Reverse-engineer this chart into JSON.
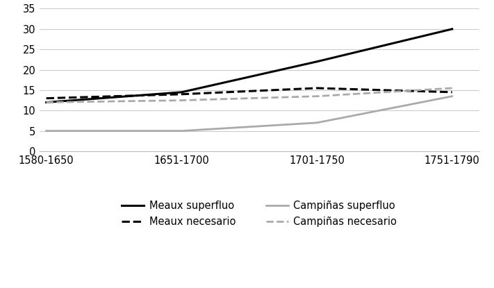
{
  "x_labels": [
    "1580-1650",
    "1651-1700",
    "1701-1750",
    "1751-1790"
  ],
  "x_positions": [
    0,
    1,
    2,
    3
  ],
  "series_order": [
    "meaux_superfluo",
    "meaux_necesario",
    "campinas_superfluo",
    "campinas_necesario"
  ],
  "series": {
    "meaux_superfluo": {
      "values": [
        12,
        14.5,
        22,
        30
      ],
      "color": "#000000",
      "linestyle": "solid",
      "linewidth": 2.2,
      "label": "Meaux superfluo"
    },
    "meaux_necesario": {
      "values": [
        13,
        14,
        15.5,
        14.5
      ],
      "color": "#000000",
      "linestyle": "dashed",
      "linewidth": 2.2,
      "label": "Meaux necesario"
    },
    "campinas_superfluo": {
      "values": [
        5,
        5,
        7,
        13.5
      ],
      "color": "#aaaaaa",
      "linestyle": "solid",
      "linewidth": 2.0,
      "label": "Campiñas superfluo"
    },
    "campinas_necesario": {
      "values": [
        12,
        12.5,
        13.5,
        15.5
      ],
      "color": "#aaaaaa",
      "linestyle": "dashed",
      "linewidth": 2.0,
      "label": "Campiñas necesario"
    }
  },
  "ylim": [
    0,
    35
  ],
  "yticks": [
    0,
    5,
    10,
    15,
    20,
    25,
    30,
    35
  ],
  "background_color": "#ffffff",
  "grid_color": "#cccccc",
  "tick_fontsize": 10.5,
  "legend_fontsize": 10.5
}
